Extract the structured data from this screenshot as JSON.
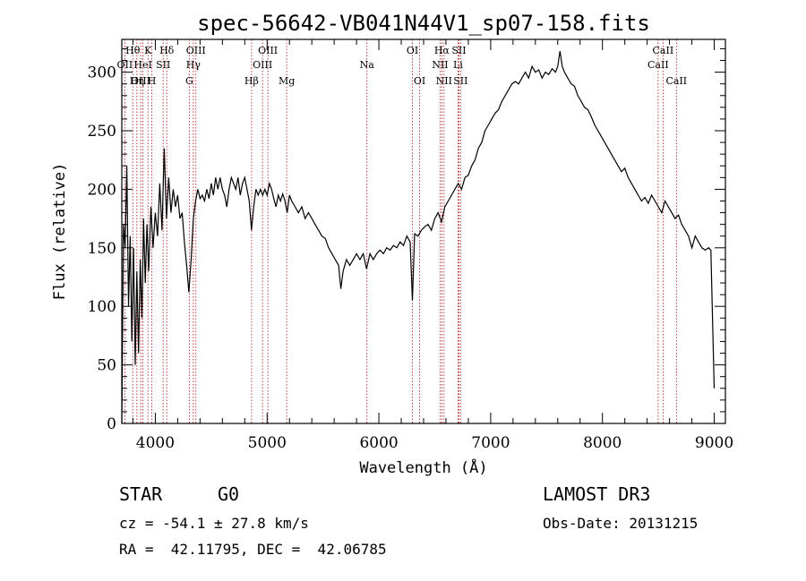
{
  "chart_data": {
    "type": "line",
    "title": "spec-56642-VB041N44V1_sp07-158.fits",
    "xlabel": "Wavelength (Å)",
    "ylabel": "Flux (relative)",
    "xlim": [
      3700,
      9100
    ],
    "ylim": [
      0,
      328
    ],
    "xticks": [
      4000,
      5000,
      6000,
      7000,
      8000,
      9000
    ],
    "yticks": [
      0,
      50,
      100,
      150,
      200,
      250,
      300
    ],
    "series": [
      {
        "name": "flux",
        "points": [
          [
            3700,
            0
          ],
          [
            3715,
            170
          ],
          [
            3730,
            150
          ],
          [
            3745,
            220
          ],
          [
            3760,
            100
          ],
          [
            3775,
            160
          ],
          [
            3790,
            70
          ],
          [
            3805,
            150
          ],
          [
            3820,
            50
          ],
          [
            3835,
            130
          ],
          [
            3850,
            60
          ],
          [
            3865,
            140
          ],
          [
            3880,
            90
          ],
          [
            3895,
            175
          ],
          [
            3910,
            120
          ],
          [
            3925,
            170
          ],
          [
            3940,
            130
          ],
          [
            3960,
            185
          ],
          [
            3980,
            150
          ],
          [
            4000,
            180
          ],
          [
            4020,
            160
          ],
          [
            4040,
            205
          ],
          [
            4060,
            165
          ],
          [
            4080,
            235
          ],
          [
            4100,
            175
          ],
          [
            4120,
            210
          ],
          [
            4140,
            180
          ],
          [
            4160,
            200
          ],
          [
            4180,
            185
          ],
          [
            4200,
            195
          ],
          [
            4220,
            175
          ],
          [
            4240,
            180
          ],
          [
            4260,
            155
          ],
          [
            4280,
            135
          ],
          [
            4300,
            112
          ],
          [
            4320,
            140
          ],
          [
            4340,
            175
          ],
          [
            4360,
            190
          ],
          [
            4380,
            200
          ],
          [
            4400,
            192
          ],
          [
            4420,
            195
          ],
          [
            4440,
            190
          ],
          [
            4460,
            200
          ],
          [
            4480,
            192
          ],
          [
            4500,
            205
          ],
          [
            4520,
            195
          ],
          [
            4540,
            210
          ],
          [
            4560,
            200
          ],
          [
            4580,
            210
          ],
          [
            4600,
            200
          ],
          [
            4620,
            195
          ],
          [
            4640,
            185
          ],
          [
            4660,
            200
          ],
          [
            4680,
            210
          ],
          [
            4700,
            205
          ],
          [
            4720,
            200
          ],
          [
            4740,
            210
          ],
          [
            4760,
            195
          ],
          [
            4780,
            205
          ],
          [
            4800,
            210
          ],
          [
            4820,
            200
          ],
          [
            4840,
            190
          ],
          [
            4860,
            165
          ],
          [
            4880,
            185
          ],
          [
            4900,
            200
          ],
          [
            4920,
            195
          ],
          [
            4940,
            200
          ],
          [
            4960,
            195
          ],
          [
            4980,
            200
          ],
          [
            5000,
            195
          ],
          [
            5020,
            205
          ],
          [
            5040,
            200
          ],
          [
            5060,
            192
          ],
          [
            5080,
            185
          ],
          [
            5100,
            195
          ],
          [
            5120,
            190
          ],
          [
            5140,
            196
          ],
          [
            5160,
            190
          ],
          [
            5180,
            180
          ],
          [
            5200,
            195
          ],
          [
            5220,
            190
          ],
          [
            5250,
            185
          ],
          [
            5280,
            180
          ],
          [
            5310,
            185
          ],
          [
            5340,
            175
          ],
          [
            5370,
            180
          ],
          [
            5400,
            175
          ],
          [
            5430,
            170
          ],
          [
            5460,
            165
          ],
          [
            5490,
            160
          ],
          [
            5520,
            158
          ],
          [
            5550,
            150
          ],
          [
            5580,
            145
          ],
          [
            5610,
            140
          ],
          [
            5640,
            135
          ],
          [
            5660,
            115
          ],
          [
            5680,
            130
          ],
          [
            5710,
            140
          ],
          [
            5740,
            135
          ],
          [
            5770,
            140
          ],
          [
            5800,
            145
          ],
          [
            5830,
            140
          ],
          [
            5860,
            145
          ],
          [
            5890,
            132
          ],
          [
            5920,
            145
          ],
          [
            5950,
            140
          ],
          [
            5980,
            145
          ],
          [
            6010,
            148
          ],
          [
            6040,
            145
          ],
          [
            6070,
            150
          ],
          [
            6100,
            148
          ],
          [
            6130,
            152
          ],
          [
            6160,
            150
          ],
          [
            6190,
            155
          ],
          [
            6220,
            152
          ],
          [
            6250,
            160
          ],
          [
            6280,
            155
          ],
          [
            6300,
            105
          ],
          [
            6320,
            162
          ],
          [
            6350,
            160
          ],
          [
            6380,
            165
          ],
          [
            6410,
            168
          ],
          [
            6440,
            170
          ],
          [
            6470,
            165
          ],
          [
            6500,
            175
          ],
          [
            6530,
            180
          ],
          [
            6560,
            172
          ],
          [
            6590,
            185
          ],
          [
            6620,
            190
          ],
          [
            6650,
            195
          ],
          [
            6680,
            200
          ],
          [
            6710,
            205
          ],
          [
            6740,
            200
          ],
          [
            6770,
            210
          ],
          [
            6800,
            212
          ],
          [
            6830,
            220
          ],
          [
            6860,
            225
          ],
          [
            6890,
            235
          ],
          [
            6920,
            240
          ],
          [
            6950,
            250
          ],
          [
            6980,
            255
          ],
          [
            7010,
            260
          ],
          [
            7040,
            265
          ],
          [
            7070,
            268
          ],
          [
            7100,
            275
          ],
          [
            7130,
            280
          ],
          [
            7160,
            285
          ],
          [
            7190,
            290
          ],
          [
            7220,
            292
          ],
          [
            7250,
            290
          ],
          [
            7280,
            295
          ],
          [
            7310,
            300
          ],
          [
            7340,
            295
          ],
          [
            7370,
            305
          ],
          [
            7400,
            300
          ],
          [
            7430,
            302
          ],
          [
            7460,
            295
          ],
          [
            7490,
            300
          ],
          [
            7520,
            298
          ],
          [
            7550,
            303
          ],
          [
            7580,
            300
          ],
          [
            7600,
            305
          ],
          [
            7620,
            318
          ],
          [
            7640,
            305
          ],
          [
            7660,
            300
          ],
          [
            7690,
            295
          ],
          [
            7720,
            290
          ],
          [
            7750,
            288
          ],
          [
            7780,
            280
          ],
          [
            7810,
            275
          ],
          [
            7840,
            270
          ],
          [
            7870,
            268
          ],
          [
            7900,
            262
          ],
          [
            7930,
            255
          ],
          [
            7960,
            250
          ],
          [
            7990,
            245
          ],
          [
            8020,
            240
          ],
          [
            8050,
            235
          ],
          [
            8080,
            230
          ],
          [
            8110,
            225
          ],
          [
            8140,
            220
          ],
          [
            8170,
            215
          ],
          [
            8200,
            218
          ],
          [
            8230,
            210
          ],
          [
            8260,
            205
          ],
          [
            8290,
            200
          ],
          [
            8320,
            195
          ],
          [
            8350,
            190
          ],
          [
            8380,
            193
          ],
          [
            8410,
            188
          ],
          [
            8440,
            195
          ],
          [
            8470,
            190
          ],
          [
            8500,
            185
          ],
          [
            8530,
            180
          ],
          [
            8560,
            190
          ],
          [
            8590,
            185
          ],
          [
            8620,
            180
          ],
          [
            8650,
            175
          ],
          [
            8680,
            178
          ],
          [
            8710,
            170
          ],
          [
            8740,
            165
          ],
          [
            8770,
            160
          ],
          [
            8800,
            150
          ],
          [
            8830,
            160
          ],
          [
            8860,
            155
          ],
          [
            8890,
            150
          ],
          [
            8920,
            148
          ],
          [
            8950,
            150
          ],
          [
            8970,
            148
          ],
          [
            8985,
            90
          ],
          [
            9000,
            30
          ]
        ]
      }
    ],
    "spectral_lines": [
      {
        "label": "Hθ",
        "wavelength": 3798,
        "row": 1
      },
      {
        "label": "OII",
        "wavelength": 3727,
        "row": 2
      },
      {
        "label": "OIII",
        "wavelength": 3869,
        "row": 3
      },
      {
        "label": "K",
        "wavelength": 3934,
        "row": 1
      },
      {
        "label": "HeI",
        "wavelength": 3889,
        "row": 2
      },
      {
        "label": "Hη",
        "wavelength": 3835,
        "row": 3
      },
      {
        "label": "SII",
        "wavelength": 4070,
        "row": 2
      },
      {
        "label": "H",
        "wavelength": 3969,
        "row": 3
      },
      {
        "label": "Hδ",
        "wavelength": 4102,
        "row": 1
      },
      {
        "label": "OIII",
        "wavelength": 4363,
        "row": 1
      },
      {
        "label": "Hγ",
        "wavelength": 4340,
        "row": 2
      },
      {
        "label": "G",
        "wavelength": 4304,
        "row": 3
      },
      {
        "label": "Hβ",
        "wavelength": 4861,
        "row": 3
      },
      {
        "label": "OIII",
        "wavelength": 5007,
        "row": 1
      },
      {
        "label": "OIII",
        "wavelength": 4959,
        "row": 2
      },
      {
        "label": "Mg",
        "wavelength": 5175,
        "row": 3
      },
      {
        "label": "Na",
        "wavelength": 5893,
        "row": 2
      },
      {
        "label": "OI",
        "wavelength": 6300,
        "row": 1
      },
      {
        "label": "OI",
        "wavelength": 6364,
        "row": 3
      },
      {
        "label": "Hα",
        "wavelength": 6563,
        "row": 1
      },
      {
        "label": "NII",
        "wavelength": 6548,
        "row": 2
      },
      {
        "label": "NII",
        "wavelength": 6583,
        "row": 3
      },
      {
        "label": "SII",
        "wavelength": 6716,
        "row": 1
      },
      {
        "label": "Li",
        "wavelength": 6708,
        "row": 2
      },
      {
        "label": "SII",
        "wavelength": 6731,
        "row": 3
      },
      {
        "label": "CaII",
        "wavelength": 8542,
        "row": 1
      },
      {
        "label": "CaII",
        "wavelength": 8498,
        "row": 2
      },
      {
        "label": "CaII",
        "wavelength": 8662,
        "row": 3
      }
    ]
  },
  "info": {
    "object_class": "STAR",
    "subclass": "G0",
    "survey": "LAMOST DR3",
    "redshift": "cz = -54.1 ± 27.8 km/s",
    "obs_date": "Obs-Date: 20131215",
    "coords": "RA =  42.11795, DEC =  42.06785"
  },
  "colors": {
    "line": "#000000",
    "marker": "#b01010"
  }
}
